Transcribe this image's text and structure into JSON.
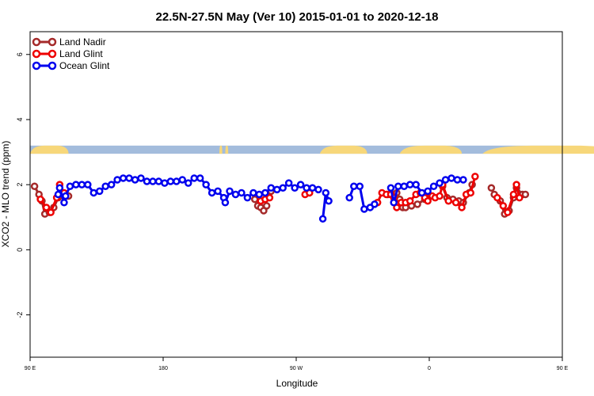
{
  "chart_data": {
    "type": "line",
    "title": "22.5N-27.5N May (Ver 10)   2015-01-01 to 2020-12-18",
    "xlabel": "Longitude",
    "ylabel": "XCO2 - MLO trend (ppm)",
    "xlim": [
      90,
      450
    ],
    "ylim": [
      -3.3,
      6.7
    ],
    "x_ticks": [
      {
        "value": 90,
        "label": "90 E"
      },
      {
        "value": 180,
        "label": "180"
      },
      {
        "value": 270,
        "label": "90 W"
      },
      {
        "value": 360,
        "label": "0"
      },
      {
        "value": 450,
        "label": "90 E"
      },
      {
        "value": 540,
        "label": "180"
      }
    ],
    "y_ticks": [
      {
        "value": -2,
        "label": "-2"
      },
      {
        "value": 0,
        "label": "0"
      },
      {
        "value": 2,
        "label": "2"
      },
      {
        "value": 4,
        "label": "4"
      },
      {
        "value": 6,
        "label": "6"
      }
    ],
    "map_band": {
      "y_range": [
        2.95,
        3.2
      ],
      "ocean_color": "#a3bcdc",
      "land_color": "#f7d77a",
      "land_x": [
        [
          90,
          116
        ],
        [
          218,
          220
        ],
        [
          222,
          224
        ],
        [
          286,
          318
        ],
        [
          340,
          382
        ],
        [
          396,
          486
        ],
        [
          492,
          496
        ],
        [
          516,
          520
        ]
      ]
    },
    "legend": {
      "position": "top-left"
    },
    "series": [
      {
        "name": "Land Nadir",
        "color": "#a52a2a",
        "segments": [
          [
            [
              93,
              1.95
            ],
            [
              96,
              1.7
            ],
            [
              98,
              1.5
            ],
            [
              100,
              1.1
            ],
            [
              103,
              1.15
            ],
            [
              106,
              1.3
            ],
            [
              109,
              1.6
            ],
            [
              113,
              1.7
            ],
            [
              116,
              1.65
            ]
          ],
          [
            [
              242,
              1.55
            ],
            [
              244,
              1.35
            ],
            [
              246,
              1.3
            ],
            [
              248,
              1.2
            ],
            [
              250,
              1.35
            ]
          ],
          [
            [
              253,
              1.8
            ]
          ],
          [
            [
              332,
              1.7
            ],
            [
              336,
              1.7
            ],
            [
              338,
              1.75
            ],
            [
              340,
              1.55
            ],
            [
              342,
              1.3
            ],
            [
              344,
              1.3
            ],
            [
              348,
              1.35
            ],
            [
              352,
              1.4
            ],
            [
              357,
              1.55
            ],
            [
              361,
              1.65
            ]
          ],
          [
            [
              369,
              1.95
            ],
            [
              372,
              1.6
            ],
            [
              376,
              1.55
            ],
            [
              380,
              1.5
            ],
            [
              383,
              1.45
            ],
            [
              387,
              1.75
            ],
            [
              389,
              2.0
            ]
          ],
          [
            [
              402,
              1.9
            ],
            [
              404,
              1.7
            ],
            [
              408,
              1.5
            ],
            [
              411,
              1.1
            ],
            [
              414,
              1.2
            ],
            [
              417,
              1.6
            ],
            [
              419,
              1.9
            ],
            [
              423,
              1.7
            ],
            [
              425,
              1.7
            ]
          ]
        ]
      },
      {
        "name": "Land Glint",
        "color": "#ee0000",
        "segments": [
          [
            [
              97,
              1.55
            ],
            [
              101,
              1.3
            ],
            [
              104,
              1.15
            ],
            [
              108,
              1.6
            ],
            [
              110,
              2.0
            ],
            [
              113,
              1.75
            ]
          ],
          [
            [
              246,
              1.5
            ],
            [
              249,
              1.55
            ],
            [
              252,
              1.6
            ]
          ],
          [
            [
              276,
              1.7
            ],
            [
              279,
              1.75
            ]
          ],
          [
            [
              325,
              1.45
            ],
            [
              328,
              1.75
            ],
            [
              331,
              1.7
            ],
            [
              334,
              1.7
            ],
            [
              336,
              1.6
            ],
            [
              338,
              1.3
            ],
            [
              341,
              1.45
            ],
            [
              344,
              1.45
            ],
            [
              347,
              1.5
            ],
            [
              351,
              1.7
            ],
            [
              354,
              1.75
            ],
            [
              357,
              1.6
            ],
            [
              359,
              1.5
            ],
            [
              362,
              1.65
            ],
            [
              364,
              1.6
            ],
            [
              367,
              1.65
            ],
            [
              369,
              2.0
            ],
            [
              373,
              1.5
            ],
            [
              378,
              1.45
            ],
            [
              382,
              1.3
            ],
            [
              385,
              1.7
            ],
            [
              388,
              1.75
            ],
            [
              391,
              2.25
            ]
          ],
          [
            [
              406,
              1.6
            ],
            [
              410,
              1.35
            ],
            [
              413,
              1.15
            ],
            [
              417,
              1.7
            ],
            [
              419,
              2.0
            ],
            [
              421,
              1.6
            ]
          ]
        ]
      },
      {
        "name": "Ocean Glint",
        "color": "#0000ee",
        "segments": [
          [
            [
              109,
              1.7
            ],
            [
              110,
              1.9
            ],
            [
              113,
              1.45
            ],
            [
              114,
              1.65
            ],
            [
              117,
              1.95
            ],
            [
              121,
              2.0
            ],
            [
              125,
              2.0
            ],
            [
              129,
              2.0
            ],
            [
              133,
              1.75
            ],
            [
              137,
              1.8
            ],
            [
              141,
              1.95
            ],
            [
              145,
              2.0
            ],
            [
              149,
              2.15
            ],
            [
              153,
              2.2
            ],
            [
              157,
              2.2
            ],
            [
              161,
              2.15
            ],
            [
              165,
              2.2
            ],
            [
              169,
              2.1
            ],
            [
              173,
              2.1
            ],
            [
              177,
              2.1
            ],
            [
              181,
              2.05
            ],
            [
              185,
              2.1
            ],
            [
              189,
              2.1
            ],
            [
              193,
              2.15
            ],
            [
              197,
              2.05
            ],
            [
              201,
              2.2
            ],
            [
              205,
              2.2
            ],
            [
              209,
              2.0
            ],
            [
              213,
              1.75
            ],
            [
              217,
              1.8
            ],
            [
              221,
              1.6
            ]
          ],
          [
            [
              222,
              1.45
            ],
            [
              225,
              1.8
            ],
            [
              229,
              1.7
            ],
            [
              233,
              1.75
            ],
            [
              237,
              1.6
            ],
            [
              241,
              1.75
            ],
            [
              245,
              1.7
            ],
            [
              249,
              1.75
            ],
            [
              253,
              1.9
            ],
            [
              257,
              1.85
            ],
            [
              261,
              1.9
            ],
            [
              265,
              2.05
            ],
            [
              269,
              1.9
            ],
            [
              273,
              2.0
            ],
            [
              277,
              1.9
            ],
            [
              281,
              1.9
            ],
            [
              285,
              1.85
            ]
          ],
          [
            [
              288,
              0.95
            ],
            [
              290,
              1.75
            ],
            [
              292,
              1.5
            ]
          ],
          [
            [
              306,
              1.6
            ],
            [
              309,
              1.95
            ],
            [
              313,
              1.95
            ],
            [
              316,
              1.25
            ],
            [
              320,
              1.3
            ],
            [
              323,
              1.4
            ]
          ],
          [
            [
              334,
              1.9
            ],
            [
              336,
              1.45
            ],
            [
              339,
              1.95
            ],
            [
              343,
              1.95
            ],
            [
              347,
              2.0
            ],
            [
              351,
              2.0
            ],
            [
              355,
              1.75
            ],
            [
              359,
              1.8
            ],
            [
              363,
              1.95
            ],
            [
              367,
              2.05
            ],
            [
              371,
              2.15
            ],
            [
              375,
              2.2
            ],
            [
              379,
              2.15
            ],
            [
              383,
              2.15
            ]
          ]
        ]
      }
    ]
  }
}
